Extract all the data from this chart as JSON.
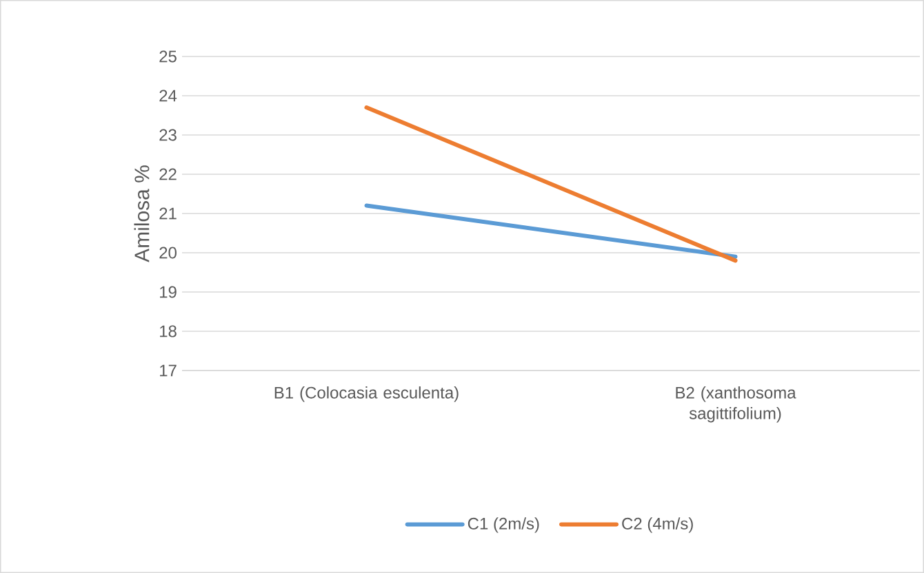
{
  "chart_data": {
    "type": "line",
    "ylabel": "Amilosa %",
    "categories": [
      "B1 (Colocasia esculenta)",
      "B2 (xanthosoma sagittifolium)"
    ],
    "series": [
      {
        "name": "C1 (2m/s)",
        "color": "#5b9bd5",
        "values": [
          21.2,
          19.9
        ]
      },
      {
        "name": "C2 (4m/s)",
        "color": "#ed7d31",
        "values": [
          23.7,
          19.8
        ]
      }
    ],
    "ylim": [
      17,
      25
    ],
    "yticks": [
      17,
      18,
      19,
      20,
      21,
      22,
      23,
      24,
      25
    ],
    "grid": "y",
    "legend": "bottom"
  }
}
